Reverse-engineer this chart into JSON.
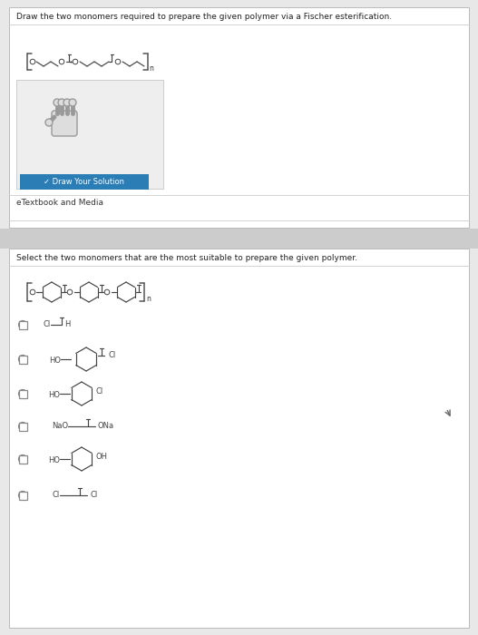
{
  "bg_outer": "#e8e8e8",
  "bg_panel1": "#f5f5f5",
  "bg_white": "#ffffff",
  "bg_draw_box": "#f0f0f0",
  "bg_separator": "#c8c8c8",
  "bg_panel2": "#f5f5f5",
  "title1": "Draw the two monomers required to prepare the given polymer via a Fischer esterification.",
  "title2": "Select the two monomers that are the most suitable to prepare the given polymer.",
  "etextbook": "eTextbook and Media",
  "btn_text": "✓ Draw Your Solution",
  "btn_bg": "#2a7db5",
  "bond_color": "#444444",
  "text_color": "#222222",
  "label_color": "#444444",
  "radio_color": "#888888",
  "line_color": "#bbbbbb",
  "fig_w": 5.27,
  "fig_h": 7.0,
  "dpi": 100
}
